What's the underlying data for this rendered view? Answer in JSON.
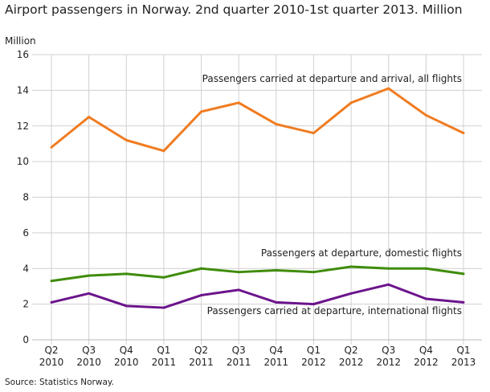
{
  "chart_data": {
    "type": "line",
    "title": "Airport passengers in Norway. 2nd quarter 2010-1st quarter 2013. Million",
    "ylabel": "Million",
    "xlabel": "",
    "ylim": [
      0,
      16
    ],
    "yticks": [
      "0",
      "2",
      "4",
      "6",
      "8",
      "10",
      "12",
      "14",
      "16"
    ],
    "categories": [
      [
        "Q2",
        "2010"
      ],
      [
        "Q3",
        "2010"
      ],
      [
        "Q4",
        "2010"
      ],
      [
        "Q1",
        "2011"
      ],
      [
        "Q2",
        "2011"
      ],
      [
        "Q3",
        "2011"
      ],
      [
        "Q4",
        "2011"
      ],
      [
        "Q1",
        "2012"
      ],
      [
        "Q2",
        "2012"
      ],
      [
        "Q3",
        "2012"
      ],
      [
        "Q4",
        "2012"
      ],
      [
        "Q1",
        "2013"
      ]
    ],
    "grid": true,
    "series": [
      {
        "name": "Passengers carried at departure and arrival, all flights",
        "color": "#f07c21",
        "values": [
          10.8,
          12.5,
          11.2,
          10.6,
          12.8,
          13.3,
          12.1,
          11.6,
          13.3,
          14.1,
          12.6,
          11.6
        ]
      },
      {
        "name": "Passengers at departure, domestic flights",
        "color": "#3f8c0a",
        "values": [
          3.3,
          3.6,
          3.7,
          3.5,
          4.0,
          3.8,
          3.9,
          3.8,
          4.1,
          4.0,
          4.0,
          3.7
        ]
      },
      {
        "name": "Passengers carried at departure, international flights",
        "color": "#6c148c",
        "values": [
          2.1,
          2.6,
          1.9,
          1.8,
          2.5,
          2.8,
          2.1,
          2.0,
          2.6,
          3.1,
          2.3,
          2.1
        ]
      }
    ],
    "source": "Source: Statistics Norway."
  }
}
